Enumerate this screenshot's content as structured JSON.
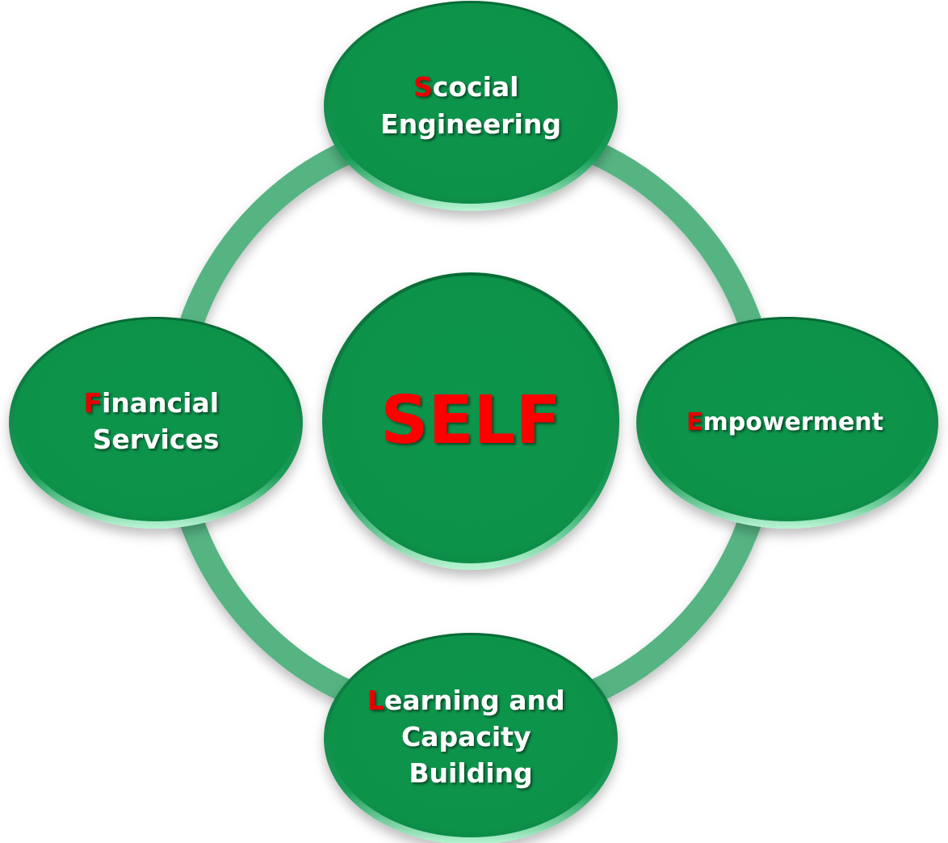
{
  "colors": {
    "node_fill": "#0a934b",
    "ring": "#54b482",
    "accent": "#e60000",
    "label": "#ffffff"
  },
  "center": {
    "label": "SELF"
  },
  "nodes": {
    "top": {
      "initial": "S",
      "line1_rest": "cocial",
      "line2": "Engineering"
    },
    "right": {
      "initial": "E",
      "line1_rest": "mpowerment"
    },
    "bottom": {
      "initial": "L",
      "line1_rest": "earning and",
      "line2": "Capacity",
      "line3": "Building"
    },
    "left": {
      "initial": "F",
      "line1_rest": "inancial",
      "line2": "Services"
    }
  }
}
